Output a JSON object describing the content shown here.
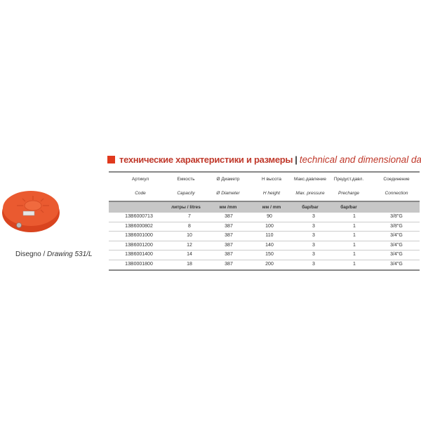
{
  "title": {
    "ru": "технические характеристики и размеры",
    "separator": "|",
    "en": "technical and dimensional data"
  },
  "caption": {
    "it": "Disegno /",
    "en": "Drawing 531/L"
  },
  "colors": {
    "accent": "#e0391d",
    "tank": "#e8502a"
  },
  "table": {
    "headers_ru": [
      "Артикул",
      "Емкость",
      "Ø Диаметр",
      "H высота",
      "Макс.давление",
      "Предуст.давл.",
      "Соединение"
    ],
    "headers_en": [
      "Code",
      "Capacity",
      "Ø Diameter",
      "H height",
      "Max. pressure",
      "Precharge",
      "Connection"
    ],
    "units": [
      "",
      "литры / litres",
      "мм /mm",
      "мм / mm",
      "бар/bar",
      "бар/bar",
      ""
    ],
    "rows": [
      [
        "13B6000713",
        "7",
        "387",
        "90",
        "3",
        "1",
        "3/8\"G"
      ],
      [
        "13B6000802",
        "8",
        "387",
        "100",
        "3",
        "1",
        "3/8\"G"
      ],
      [
        "13B6001000",
        "10",
        "387",
        "110",
        "3",
        "1",
        "3/4\"G"
      ],
      [
        "13B6001200",
        "12",
        "387",
        "140",
        "3",
        "1",
        "3/4\"G"
      ],
      [
        "13B6001400",
        "14",
        "387",
        "150",
        "3",
        "1",
        "3/4\"G"
      ],
      [
        "13B0001800",
        "18",
        "387",
        "200",
        "3",
        "1",
        "3/4\"G"
      ]
    ]
  }
}
